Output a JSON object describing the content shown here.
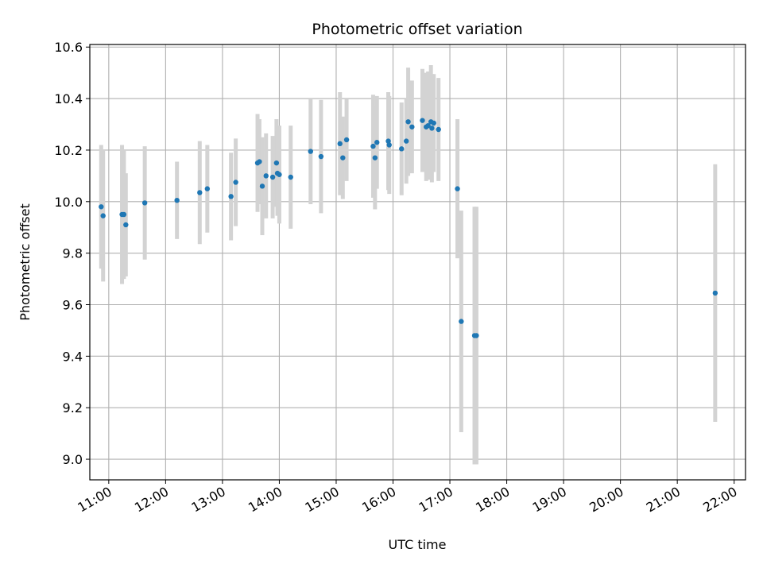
{
  "chart_data": {
    "type": "scatter",
    "title": "Photometric offset variation",
    "xlabel": "UTC time",
    "ylabel": "Photometric offset",
    "xlim": [
      "10:40",
      "22:12"
    ],
    "ylim": [
      8.92,
      10.61
    ],
    "xticks": [
      "11:00",
      "12:00",
      "13:00",
      "14:00",
      "15:00",
      "16:00",
      "17:00",
      "18:00",
      "19:00",
      "20:00",
      "21:00",
      "22:00"
    ],
    "yticks": [
      "9.0",
      "9.2",
      "9.4",
      "9.6",
      "9.8",
      "10.0",
      "10.2",
      "10.4",
      "10.6"
    ],
    "grid": true,
    "colors": {
      "points": "#1f77b4",
      "errorbars": "#d3d3d3",
      "grid": "#b0b0b0"
    },
    "series": [
      {
        "x": [
          "10:52",
          "10:54",
          "11:14",
          "11:16",
          "11:18",
          "11:38",
          "12:12",
          "12:36",
          "12:44",
          "13:09",
          "13:14",
          "13:37",
          "13:39",
          "13:42",
          "13:46",
          "13:53",
          "13:57",
          "13:58",
          "14:00",
          "14:12",
          "14:33",
          "14:44",
          "15:04",
          "15:07",
          "15:11",
          "15:39",
          "15:41",
          "15:43",
          "15:55",
          "15:56",
          "16:09",
          "16:14",
          "16:16",
          "16:20",
          "16:31",
          "16:35",
          "16:37",
          "16:40",
          "16:41",
          "16:43",
          "16:48",
          "17:08",
          "17:12",
          "17:26",
          "17:28",
          "21:40"
        ],
        "y": [
          9.98,
          9.945,
          9.95,
          9.95,
          9.91,
          9.995,
          10.005,
          10.035,
          10.05,
          10.02,
          10.075,
          10.15,
          10.155,
          10.06,
          10.1,
          10.095,
          10.15,
          10.11,
          10.105,
          10.095,
          10.195,
          10.175,
          10.225,
          10.17,
          10.24,
          10.215,
          10.17,
          10.23,
          10.235,
          10.22,
          10.205,
          10.235,
          10.31,
          10.29,
          10.315,
          10.29,
          10.295,
          10.31,
          10.285,
          10.305,
          10.28,
          10.05,
          9.535,
          9.48,
          9.48,
          9.645
        ],
        "err": [
          0.24,
          0.255,
          0.27,
          0.25,
          0.2,
          0.22,
          0.15,
          0.2,
          0.17,
          0.17,
          0.17,
          0.19,
          0.165,
          0.19,
          0.165,
          0.16,
          0.17,
          0.165,
          0.19,
          0.2,
          0.205,
          0.22,
          0.2,
          0.16,
          0.16,
          0.2,
          0.2,
          0.18,
          0.19,
          0.19,
          0.18,
          0.165,
          0.21,
          0.18,
          0.2,
          0.21,
          0.21,
          0.22,
          0.21,
          0.19,
          0.2,
          0.27,
          0.43,
          0.5,
          0.5,
          0.5
        ]
      }
    ]
  }
}
